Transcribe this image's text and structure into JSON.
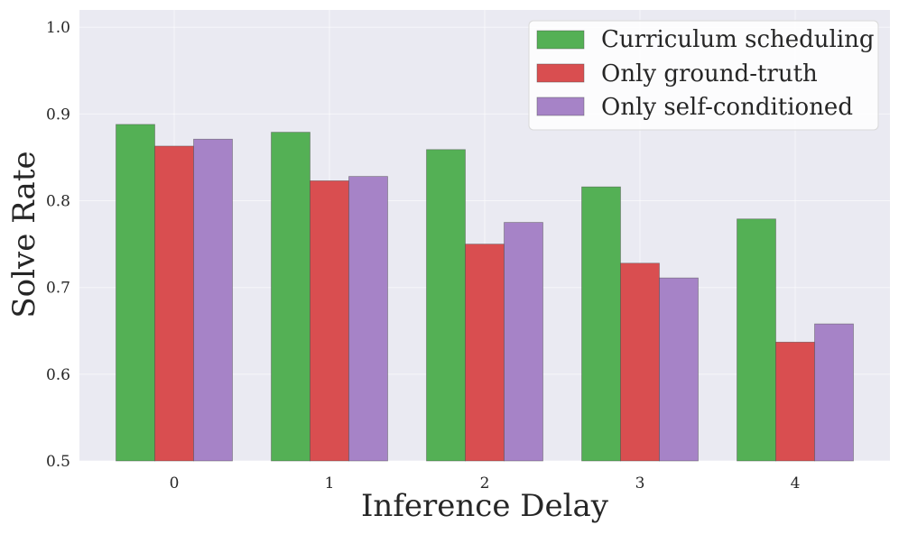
{
  "chart_data": {
    "type": "bar",
    "title": "",
    "xlabel": "Inference Delay",
    "ylabel": "Solve Rate",
    "categories": [
      "0",
      "1",
      "2",
      "3",
      "4"
    ],
    "series": [
      {
        "name": "Curriculum scheduling",
        "color": "#54b055",
        "values": [
          0.888,
          0.879,
          0.859,
          0.816,
          0.779
        ]
      },
      {
        "name": "Only ground-truth",
        "color": "#d94e50",
        "values": [
          0.863,
          0.823,
          0.75,
          0.728,
          0.637
        ]
      },
      {
        "name": "Only self-conditioned",
        "color": "#a683c7",
        "values": [
          0.871,
          0.828,
          0.775,
          0.711,
          0.658
        ]
      }
    ],
    "ylim": [
      0.5,
      1.02
    ],
    "yticks": [
      "0.5",
      "0.6",
      "0.7",
      "0.8",
      "0.9",
      "1.0"
    ],
    "grid": true,
    "legend_position": "top-right",
    "background_color": "#eaeaf2"
  }
}
